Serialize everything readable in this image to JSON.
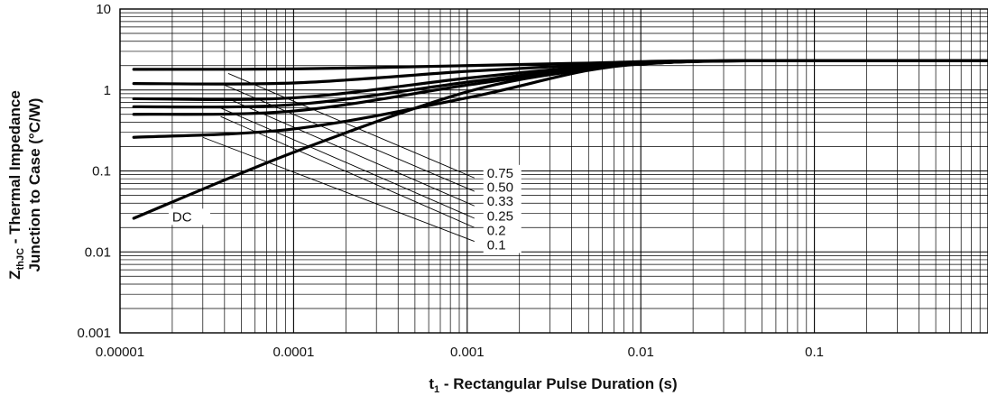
{
  "chart_data": {
    "type": "line",
    "xlabel_main": "t",
    "xlabel_sub": "1",
    "xlabel_rest": " - Rectangular Pulse Duration (s)",
    "ylabel_line1_main": "Z",
    "ylabel_line1_sub": "thJC",
    "ylabel_line1_rest": " - Thermal Impedance",
    "ylabel_line2": "Junction to Case (°C/W)",
    "xscale": "log",
    "yscale": "log",
    "xlim": [
      1e-05,
      1
    ],
    "ylim": [
      0.001,
      10
    ],
    "x_tick_labels": [
      "0.00001",
      "0.0001",
      "0.001",
      "0.01",
      "0.1"
    ],
    "y_tick_labels": [
      "0.001",
      "0.01",
      "0.1",
      "1",
      "10"
    ],
    "grid": true,
    "series": [
      {
        "name": "DC",
        "points": [
          [
            1.2e-05,
            0.026
          ],
          [
            0.0001,
            0.17
          ],
          [
            0.001,
            0.95
          ],
          [
            0.005,
            1.8
          ],
          [
            0.015,
            2.2
          ],
          [
            0.05,
            2.3
          ],
          [
            1,
            2.3
          ]
        ]
      },
      {
        "name": "0.1",
        "points": [
          [
            1.2e-05,
            0.26
          ],
          [
            0.0001,
            0.33
          ],
          [
            0.001,
            0.8
          ],
          [
            0.005,
            1.75
          ],
          [
            0.015,
            2.2
          ],
          [
            0.05,
            2.3
          ],
          [
            1,
            2.3
          ]
        ]
      },
      {
        "name": "0.2",
        "points": [
          [
            1.2e-05,
            0.5
          ],
          [
            0.0001,
            0.55
          ],
          [
            0.001,
            1.15
          ],
          [
            0.005,
            1.85
          ],
          [
            0.015,
            2.2
          ],
          [
            0.05,
            2.3
          ],
          [
            1,
            2.3
          ]
        ]
      },
      {
        "name": "0.25",
        "points": [
          [
            1.2e-05,
            0.62
          ],
          [
            0.0001,
            0.66
          ],
          [
            0.001,
            1.25
          ],
          [
            0.005,
            1.9
          ],
          [
            0.015,
            2.2
          ],
          [
            0.05,
            2.3
          ],
          [
            1,
            2.3
          ]
        ]
      },
      {
        "name": "0.33",
        "points": [
          [
            1.2e-05,
            0.78
          ],
          [
            0.0001,
            0.8
          ],
          [
            0.001,
            1.4
          ],
          [
            0.005,
            1.95
          ],
          [
            0.015,
            2.2
          ],
          [
            0.05,
            2.3
          ],
          [
            1,
            2.3
          ]
        ]
      },
      {
        "name": "0.50",
        "points": [
          [
            1.2e-05,
            1.2
          ],
          [
            0.0001,
            1.22
          ],
          [
            0.001,
            1.7
          ],
          [
            0.005,
            2.05
          ],
          [
            0.015,
            2.25
          ],
          [
            0.05,
            2.3
          ],
          [
            1,
            2.3
          ]
        ]
      },
      {
        "name": "0.75",
        "points": [
          [
            1.2e-05,
            1.8
          ],
          [
            0.0001,
            1.82
          ],
          [
            0.001,
            2.0
          ],
          [
            0.005,
            2.15
          ],
          [
            0.015,
            2.28
          ],
          [
            0.05,
            2.3
          ],
          [
            1,
            2.3
          ]
        ]
      }
    ],
    "duty_guides": [
      {
        "label": "0.75",
        "from": [
          4.2e-05,
          1.6
        ],
        "to": [
          0.0011,
          0.082
        ]
      },
      {
        "label": "0.50",
        "from": [
          4e-05,
          1.15
        ],
        "to": [
          0.0011,
          0.056
        ]
      },
      {
        "label": "0.33",
        "from": [
          4.2e-05,
          0.78
        ],
        "to": [
          0.0011,
          0.037
        ]
      },
      {
        "label": "0.25",
        "from": [
          3.8e-05,
          0.6
        ],
        "to": [
          0.0011,
          0.026
        ]
      },
      {
        "label": "0.2",
        "from": [
          3.8e-05,
          0.47
        ],
        "to": [
          0.0011,
          0.02
        ]
      },
      {
        "label": "0.1",
        "from": [
          3e-05,
          0.26
        ],
        "to": [
          0.0011,
          0.0135
        ]
      }
    ],
    "legend_labels": [
      {
        "text": "0.75",
        "at": [
          0.0013,
          0.085
        ]
      },
      {
        "text": "0.50",
        "at": [
          0.0013,
          0.057
        ]
      },
      {
        "text": "0.33",
        "at": [
          0.0013,
          0.038
        ]
      },
      {
        "text": "0.25",
        "at": [
          0.0013,
          0.025
        ]
      },
      {
        "text": "0.2",
        "at": [
          0.0013,
          0.0165
        ]
      },
      {
        "text": "0.1",
        "at": [
          0.0013,
          0.011
        ]
      }
    ],
    "dc_label": {
      "text": "DC",
      "at": [
        2e-05,
        0.0245
      ]
    }
  }
}
